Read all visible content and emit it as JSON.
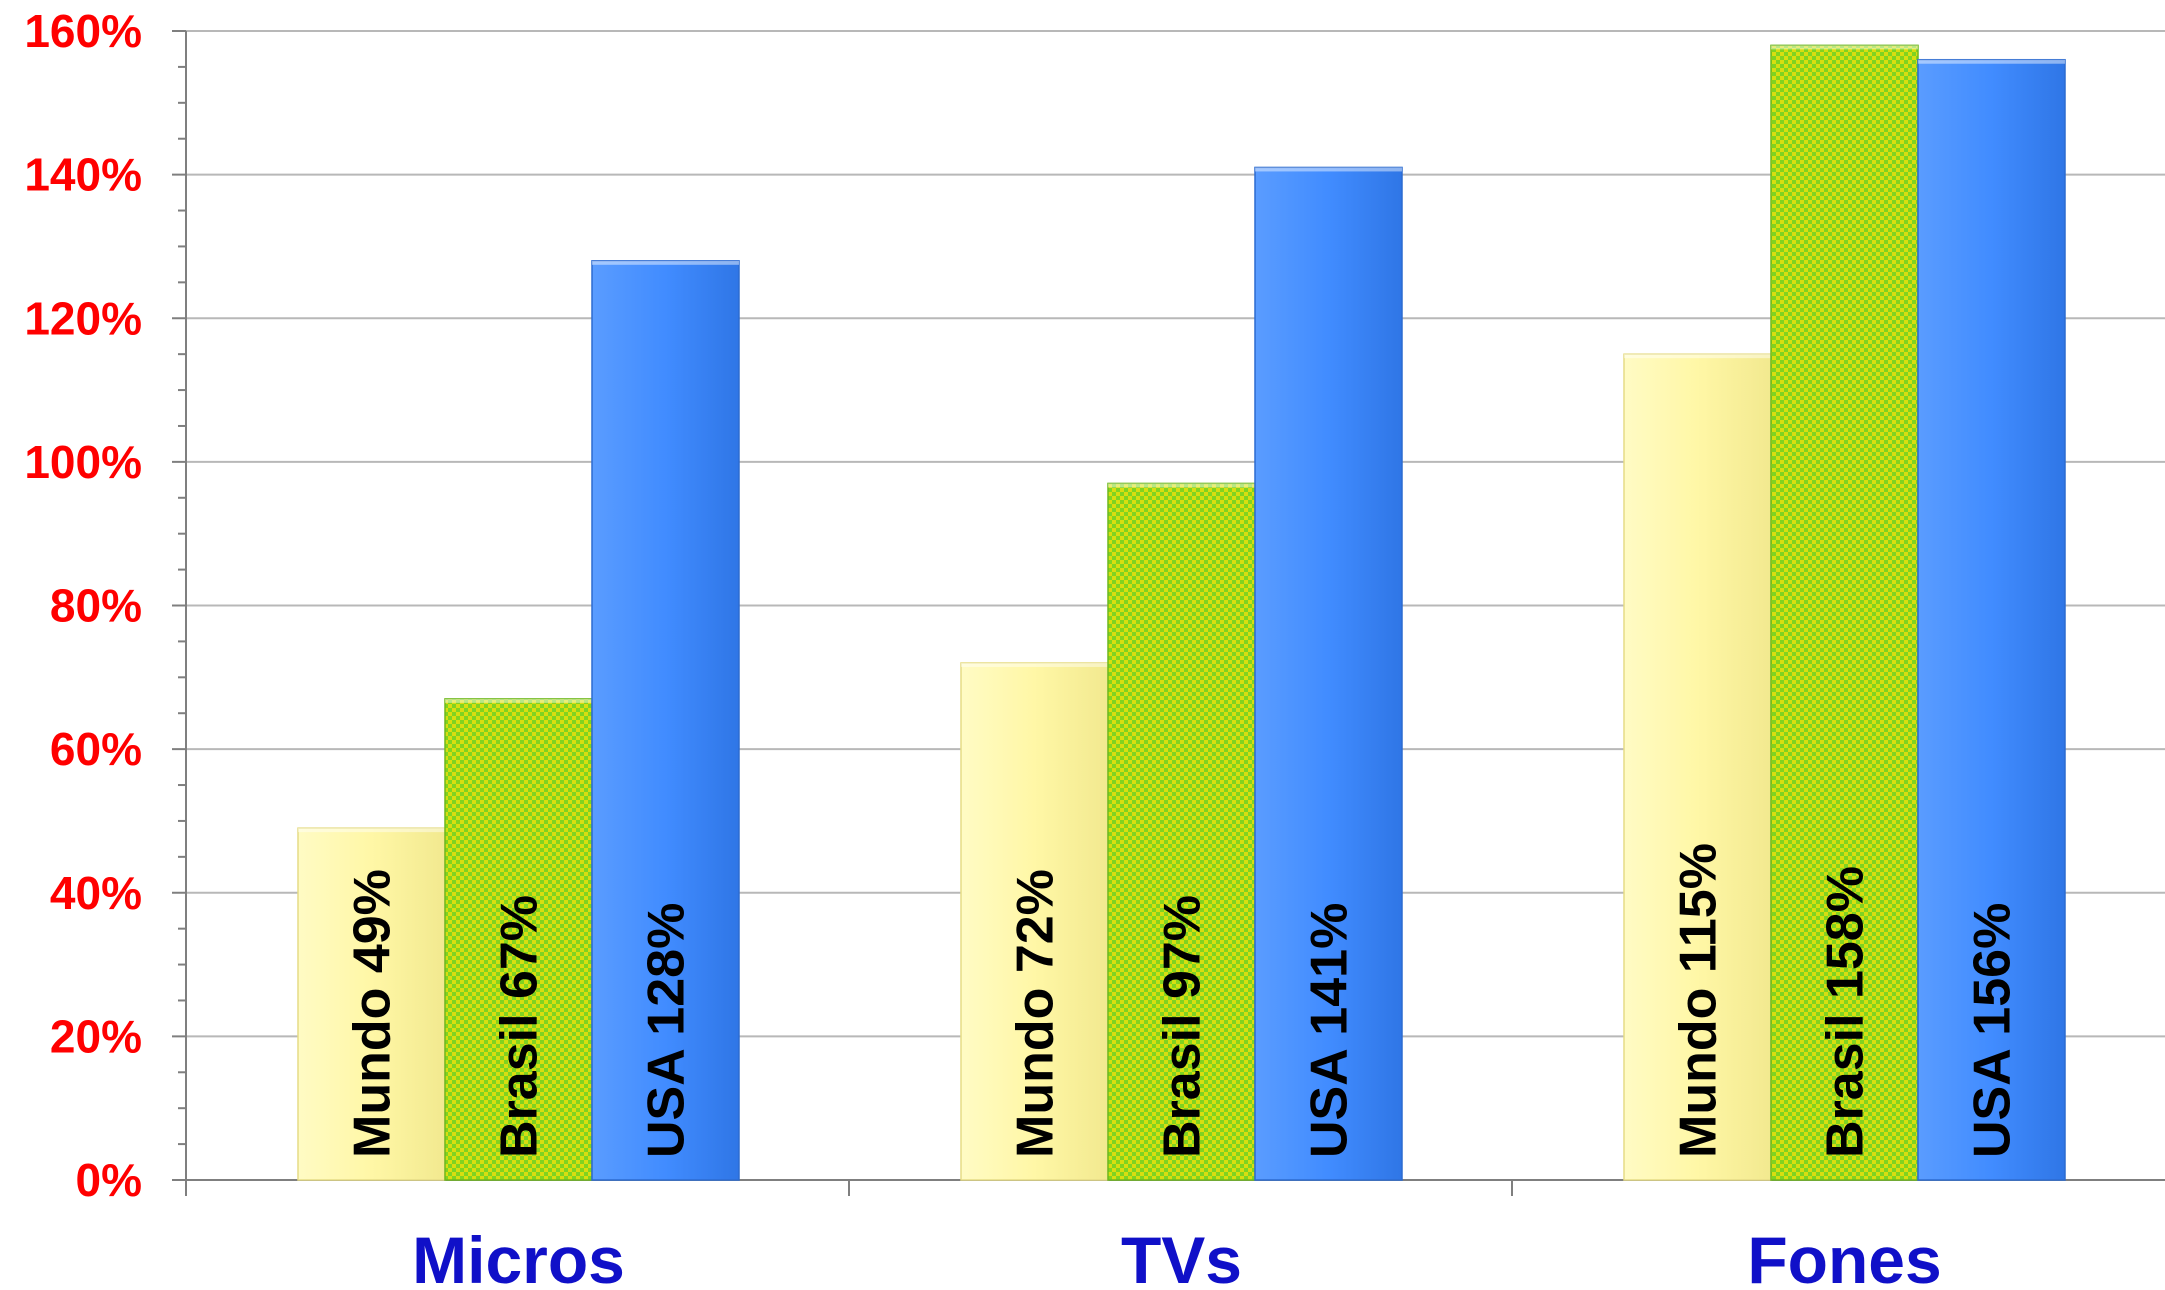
{
  "chart_data": {
    "type": "bar",
    "title": "",
    "xlabel": "",
    "ylabel": "",
    "ylim": [
      0,
      160
    ],
    "y_unit": "%",
    "grid": true,
    "legend": "none",
    "categories": [
      "Micros",
      "TVs",
      "Fones"
    ],
    "series": [
      {
        "name": "Mundo",
        "color": "#FFF7A6",
        "values": [
          49,
          72,
          115
        ],
        "labels": [
          "Mundo 49%",
          "Mundo 72%",
          "Mundo 115%"
        ]
      },
      {
        "name": "Brasil",
        "color": "#7FD321",
        "pattern_color": "#D8DE10",
        "values": [
          67,
          97,
          158
        ],
        "labels": [
          "Brasil 67%",
          "Brasil 97%",
          "Brasil 158%"
        ]
      },
      {
        "name": "USA",
        "color": "#3F8CFF",
        "values": [
          128,
          141,
          156
        ],
        "labels": [
          "USA 128%",
          "USA 141%",
          "USA 156%"
        ]
      }
    ],
    "y_ticks": [
      {
        "value": 0,
        "label": "0%"
      },
      {
        "value": 20,
        "label": "20%"
      },
      {
        "value": 40,
        "label": "40%"
      },
      {
        "value": 60,
        "label": "60%"
      },
      {
        "value": 80,
        "label": "80%"
      },
      {
        "value": 100,
        "label": "100%"
      },
      {
        "value": 120,
        "label": "120%"
      },
      {
        "value": 140,
        "label": "140%"
      },
      {
        "value": 160,
        "label": "160%"
      }
    ],
    "colors": {
      "tick_label": "#FF0000",
      "category_label": "#1010C8",
      "grid": "#B8B8B8",
      "axis": "#7F7F7F"
    }
  }
}
